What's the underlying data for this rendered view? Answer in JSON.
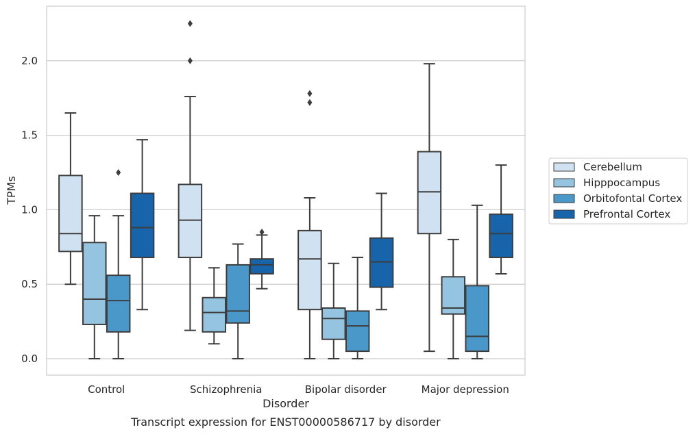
{
  "chart_data": {
    "type": "box",
    "caption": "Transcript expression for ENST00000586717 by disorder",
    "xlabel": "Disorder",
    "ylabel": "TPMs",
    "ylim": [
      -0.11,
      2.37
    ],
    "yticks": [
      0.0,
      0.5,
      1.0,
      1.5,
      2.0
    ],
    "ytick_labels": [
      "0.0",
      "0.5",
      "1.0",
      "1.5",
      "2.0"
    ],
    "grid": "horizontal",
    "legend_position": "right",
    "categories": [
      "Control",
      "Schizophrenia",
      "Bipolar disorder",
      "Major depression"
    ],
    "series": [
      {
        "name": "Cerebellum",
        "color": "#d0e1f2",
        "boxes": [
          {
            "whislo": 0.5,
            "q1": 0.72,
            "med": 0.84,
            "q3": 1.23,
            "whishi": 1.65,
            "fliers": []
          },
          {
            "whislo": 0.19,
            "q1": 0.68,
            "med": 0.93,
            "q3": 1.17,
            "whishi": 1.76,
            "fliers": [
              2.0,
              2.25
            ]
          },
          {
            "whislo": 0.0,
            "q1": 0.33,
            "med": 0.67,
            "q3": 0.86,
            "whishi": 1.08,
            "fliers": [
              1.72,
              1.78
            ]
          },
          {
            "whislo": 0.05,
            "q1": 0.84,
            "med": 1.12,
            "q3": 1.39,
            "whishi": 1.98,
            "fliers": []
          }
        ]
      },
      {
        "name": "Hipppocampus",
        "color": "#94c4df",
        "boxes": [
          {
            "whislo": 0.0,
            "q1": 0.23,
            "med": 0.4,
            "q3": 0.78,
            "whishi": 0.96,
            "fliers": []
          },
          {
            "whislo": 0.1,
            "q1": 0.18,
            "med": 0.31,
            "q3": 0.41,
            "whishi": 0.61,
            "fliers": []
          },
          {
            "whislo": 0.0,
            "q1": 0.13,
            "med": 0.27,
            "q3": 0.34,
            "whishi": 0.64,
            "fliers": []
          },
          {
            "whislo": 0.0,
            "q1": 0.3,
            "med": 0.34,
            "q3": 0.55,
            "whishi": 0.8,
            "fliers": []
          }
        ]
      },
      {
        "name": "Orbitofontal Cortex",
        "color": "#4a98c9",
        "boxes": [
          {
            "whislo": 0.0,
            "q1": 0.18,
            "med": 0.39,
            "q3": 0.56,
            "whishi": 0.96,
            "fliers": [
              1.25
            ]
          },
          {
            "whislo": 0.0,
            "q1": 0.24,
            "med": 0.32,
            "q3": 0.63,
            "whishi": 0.77,
            "fliers": []
          },
          {
            "whislo": 0.0,
            "q1": 0.05,
            "med": 0.22,
            "q3": 0.32,
            "whishi": 0.68,
            "fliers": []
          },
          {
            "whislo": 0.0,
            "q1": 0.05,
            "med": 0.15,
            "q3": 0.49,
            "whishi": 1.03,
            "fliers": []
          }
        ]
      },
      {
        "name": "Prefrontal Cortex",
        "color": "#1764ab",
        "boxes": [
          {
            "whislo": 0.33,
            "q1": 0.68,
            "med": 0.88,
            "q3": 1.11,
            "whishi": 1.47,
            "fliers": []
          },
          {
            "whislo": 0.47,
            "q1": 0.57,
            "med": 0.63,
            "q3": 0.67,
            "whishi": 0.83,
            "fliers": [
              0.85
            ]
          },
          {
            "whislo": 0.33,
            "q1": 0.48,
            "med": 0.65,
            "q3": 0.81,
            "whishi": 1.11,
            "fliers": []
          },
          {
            "whislo": 0.57,
            "q1": 0.68,
            "med": 0.84,
            "q3": 0.97,
            "whishi": 1.3,
            "fliers": []
          }
        ]
      }
    ]
  }
}
